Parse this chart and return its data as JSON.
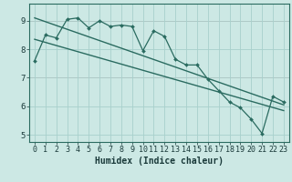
{
  "title": "",
  "xlabel": "Humidex (Indice chaleur)",
  "bg_color": "#cce8e4",
  "grid_color": "#a8d0cc",
  "line_color": "#2a6b60",
  "xlim": [
    -0.5,
    23.5
  ],
  "ylim": [
    4.75,
    9.6
  ],
  "xticks": [
    0,
    1,
    2,
    3,
    4,
    5,
    6,
    7,
    8,
    9,
    10,
    11,
    12,
    13,
    14,
    15,
    16,
    17,
    18,
    19,
    20,
    21,
    22,
    23
  ],
  "yticks": [
    5,
    6,
    7,
    8,
    9
  ],
  "data_x": [
    0,
    1,
    2,
    3,
    4,
    5,
    6,
    7,
    8,
    9,
    10,
    11,
    12,
    13,
    14,
    15,
    16,
    17,
    18,
    19,
    20,
    21,
    22,
    23
  ],
  "data_y": [
    7.6,
    8.5,
    8.4,
    9.05,
    9.1,
    8.75,
    9.0,
    8.8,
    8.85,
    8.8,
    7.95,
    8.65,
    8.45,
    7.65,
    7.45,
    7.45,
    6.95,
    6.55,
    6.15,
    5.95,
    5.55,
    5.05,
    6.35,
    6.15
  ],
  "trend1_x": [
    0,
    23
  ],
  "trend1_y": [
    9.1,
    6.05
  ],
  "trend2_x": [
    0,
    23
  ],
  "trend2_y": [
    8.35,
    5.85
  ],
  "pink_lines": [
    7.0,
    9.0
  ],
  "xlabel_fontsize": 7,
  "tick_fontsize": 6
}
